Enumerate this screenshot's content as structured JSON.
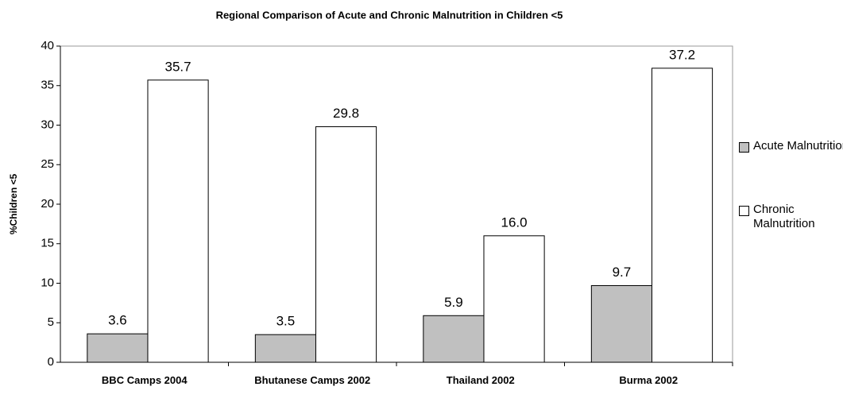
{
  "chart_data": {
    "type": "bar",
    "title": "Regional Comparison of Acute and Chronic Malnutrition in Children <5",
    "y_label": "%Children <5",
    "categories": [
      "BBC Camps 2004",
      "Bhutanese Camps 2002",
      "Thailand 2002",
      "Burma 2002"
    ],
    "series": [
      {
        "name": "Acute Malnutrition",
        "color": "#c0c0c0",
        "values": [
          3.6,
          3.5,
          5.9,
          9.7
        ]
      },
      {
        "name": "Chronic Malnutrition",
        "color": "#ffffff",
        "values": [
          35.7,
          29.8,
          16,
          37.2
        ],
        "value_labels": [
          "35.7",
          "29.8",
          "16.0",
          "37.2"
        ]
      }
    ],
    "ylim": [
      0,
      40
    ],
    "yticks": [
      0,
      5,
      10,
      15,
      20,
      25,
      30,
      35,
      40
    ],
    "grid": false,
    "legend": "right"
  }
}
